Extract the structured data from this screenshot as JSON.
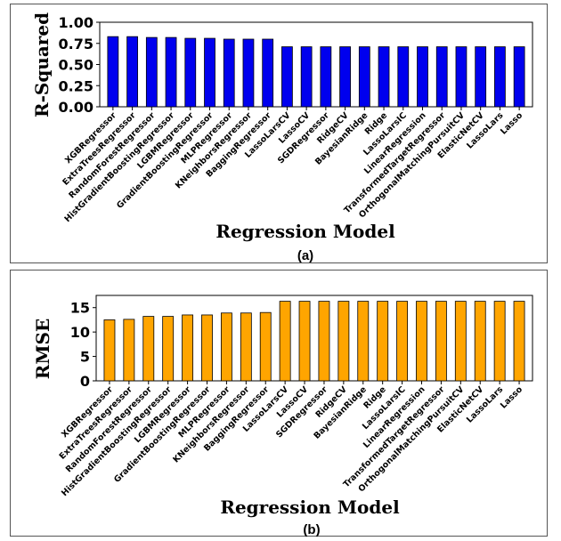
{
  "chart_data": [
    {
      "type": "bar",
      "panel_label": "(a)",
      "ylabel": "R-Squared",
      "xlabel": "Regression Model",
      "color": "#0000ee",
      "ylim": [
        0,
        1.0
      ],
      "yticks": [
        "0.00",
        "0.25",
        "0.50",
        "0.75",
        "1.00"
      ],
      "categories": [
        "XGBRegressor",
        "ExtraTreesRegressor",
        "RandomForestRegressor",
        "HistGradientBoostingRegressor",
        "LGBMRegressor",
        "GradientBoostingRegressor",
        "MLPRegressor",
        "KNeighborsRegressor",
        "BaggingRegressor",
        "LassoLarsCV",
        "LassoCV",
        "SGDRegressor",
        "RidgeCV",
        "BayesianRidge",
        "Ridge",
        "LassoLarsIC",
        "LinearRegression",
        "TransformedTargetRegressor",
        "OrthogonalMatchingPursuitCV",
        "ElasticNetCV",
        "LassoLars",
        "Lasso"
      ],
      "values": [
        0.83,
        0.83,
        0.82,
        0.82,
        0.81,
        0.81,
        0.8,
        0.8,
        0.8,
        0.71,
        0.71,
        0.71,
        0.71,
        0.71,
        0.71,
        0.71,
        0.71,
        0.71,
        0.71,
        0.71,
        0.71,
        0.71
      ]
    },
    {
      "type": "bar",
      "panel_label": "(b)",
      "ylabel": "RMSE",
      "xlabel": "Regression Model",
      "color": "#ffa500",
      "ylim": [
        0,
        17.5
      ],
      "yticks": [
        "0",
        "5",
        "10",
        "15"
      ],
      "categories": [
        "XGBRegressor",
        "ExtraTreesRegressor",
        "RandomForestRegressor",
        "HistGradientBoostingRegressor",
        "LGBMRegressor",
        "GradientBoostingRegressor",
        "MLPRegressor",
        "KNeighborsRegressor",
        "BaggingRegressor",
        "LassoLarsCV",
        "LassoCV",
        "SGDRegressor",
        "RidgeCV",
        "BayesianRidge",
        "Ridge",
        "LassoLarsIC",
        "LinearRegression",
        "TransformedTargetRegressor",
        "OrthogonalMatchingPursuitCV",
        "ElasticNetCV",
        "LassoLars",
        "Lasso"
      ],
      "values": [
        12.5,
        12.6,
        13.2,
        13.2,
        13.5,
        13.5,
        13.9,
        13.9,
        14.0,
        16.3,
        16.3,
        16.3,
        16.3,
        16.3,
        16.3,
        16.3,
        16.3,
        16.3,
        16.3,
        16.3,
        16.3,
        16.3
      ]
    }
  ]
}
